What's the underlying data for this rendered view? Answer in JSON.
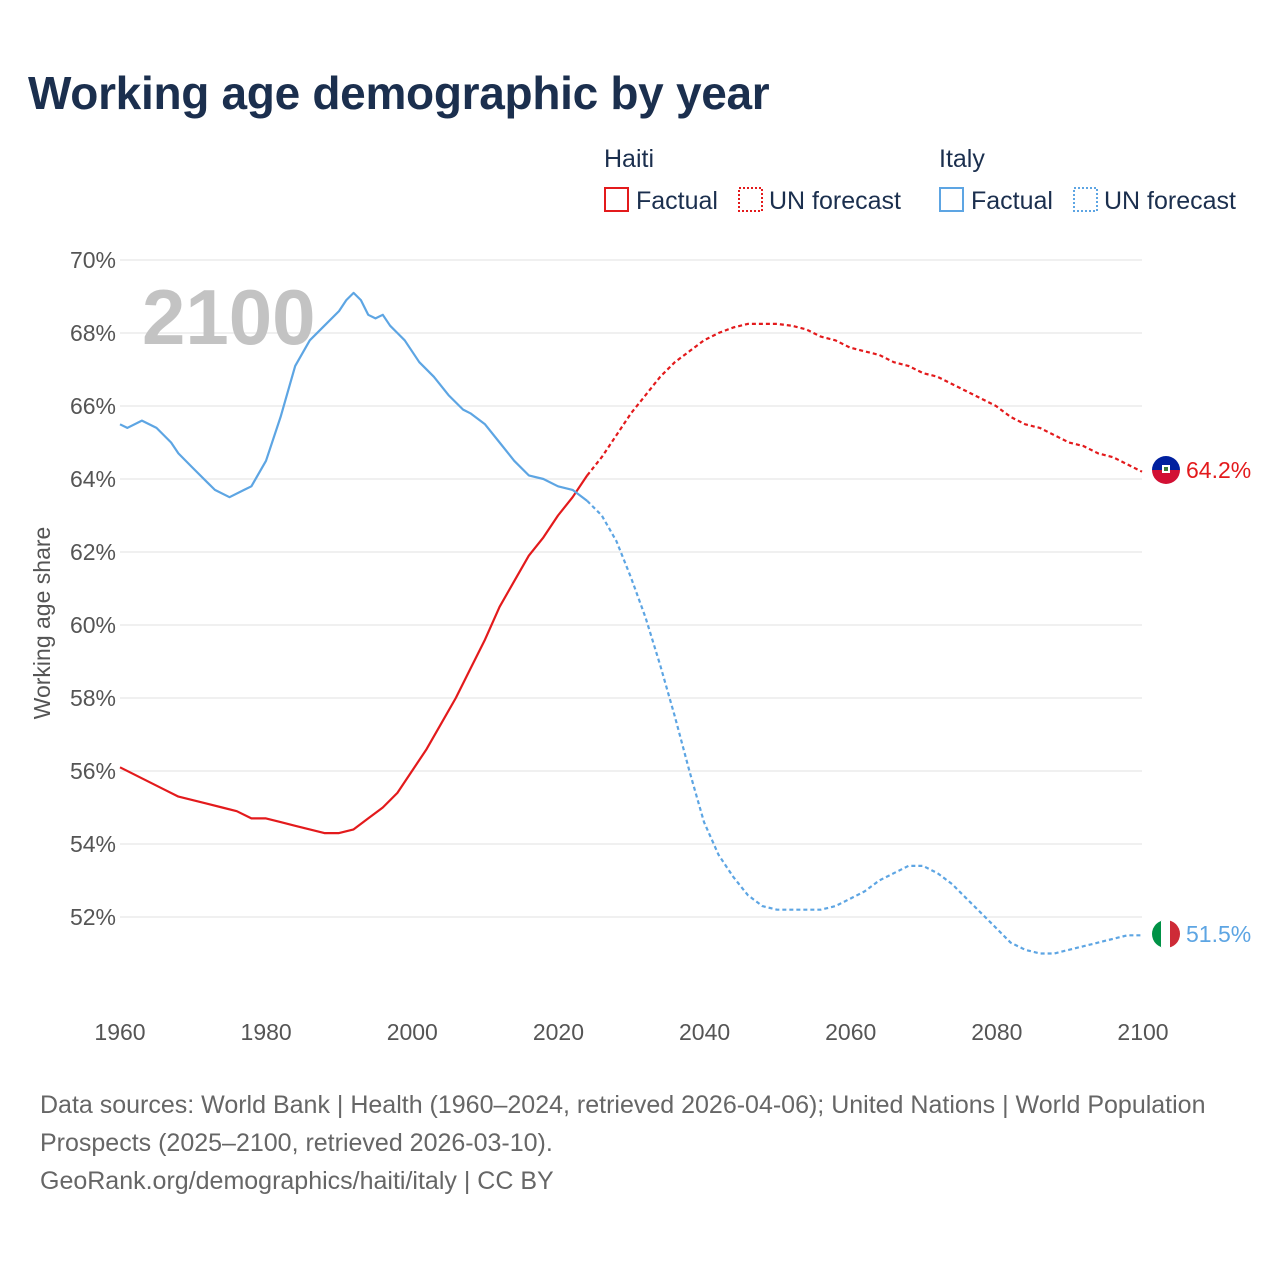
{
  "title": "Working age demographic by year",
  "watermark_year": "2100",
  "legend": {
    "groups": [
      {
        "name": "Haiti",
        "color": "#e31a1c",
        "factual_label": "Factual",
        "forecast_label": "UN forecast"
      },
      {
        "name": "Italy",
        "color": "#5da5e3",
        "factual_label": "Factual",
        "forecast_label": "UN forecast"
      }
    ]
  },
  "footer": {
    "sources": "Data sources: World Bank | Health (1960–2024, retrieved 2026-04-06); United Nations | World Population Prospects (2025–2100, retrieved 2026-03-10).",
    "credit": "GeoRank.org/demographics/haiti/italy | CC BY"
  },
  "chart_data": {
    "type": "line",
    "title": "Working age demographic by year",
    "xlabel": "",
    "ylabel": "Working age share",
    "xlim": [
      1960,
      2100
    ],
    "ylim": [
      50,
      70
    ],
    "x_ticks": [
      1960,
      1980,
      2000,
      2020,
      2040,
      2060,
      2080,
      2100
    ],
    "x_tick_labels": [
      "1960",
      "1980",
      "2000",
      "2020",
      "2040",
      "2060",
      "2080",
      "2100"
    ],
    "y_ticks": [
      52,
      54,
      56,
      58,
      60,
      62,
      64,
      66,
      68,
      70
    ],
    "y_tick_labels": [
      "52%",
      "54%",
      "56%",
      "58%",
      "60%",
      "62%",
      "64%",
      "66%",
      "68%",
      "70%"
    ],
    "grid": true,
    "forecast_start_year": 2024,
    "series": [
      {
        "name": "Haiti",
        "color": "#e31a1c",
        "end_label": "64.2%",
        "flag": "haiti-flag",
        "points": [
          [
            1960,
            56.1
          ],
          [
            1963,
            55.8
          ],
          [
            1966,
            55.5
          ],
          [
            1968,
            55.3
          ],
          [
            1970,
            55.2
          ],
          [
            1972,
            55.1
          ],
          [
            1974,
            55.0
          ],
          [
            1976,
            54.9
          ],
          [
            1978,
            54.7
          ],
          [
            1980,
            54.7
          ],
          [
            1982,
            54.6
          ],
          [
            1984,
            54.5
          ],
          [
            1986,
            54.4
          ],
          [
            1988,
            54.3
          ],
          [
            1990,
            54.3
          ],
          [
            1992,
            54.4
          ],
          [
            1994,
            54.7
          ],
          [
            1996,
            55.0
          ],
          [
            1998,
            55.4
          ],
          [
            2000,
            56.0
          ],
          [
            2002,
            56.6
          ],
          [
            2004,
            57.3
          ],
          [
            2006,
            58.0
          ],
          [
            2008,
            58.8
          ],
          [
            2010,
            59.6
          ],
          [
            2012,
            60.5
          ],
          [
            2014,
            61.2
          ],
          [
            2016,
            61.9
          ],
          [
            2018,
            62.4
          ],
          [
            2020,
            63.0
          ],
          [
            2022,
            63.5
          ],
          [
            2024,
            64.1
          ],
          [
            2026,
            64.6
          ],
          [
            2028,
            65.2
          ],
          [
            2030,
            65.8
          ],
          [
            2032,
            66.3
          ],
          [
            2034,
            66.8
          ],
          [
            2036,
            67.2
          ],
          [
            2038,
            67.5
          ],
          [
            2040,
            67.8
          ],
          [
            2042,
            68.0
          ],
          [
            2044,
            68.15
          ],
          [
            2046,
            68.25
          ],
          [
            2048,
            68.25
          ],
          [
            2050,
            68.25
          ],
          [
            2052,
            68.2
          ],
          [
            2054,
            68.1
          ],
          [
            2056,
            67.9
          ],
          [
            2058,
            67.8
          ],
          [
            2060,
            67.6
          ],
          [
            2062,
            67.5
          ],
          [
            2064,
            67.4
          ],
          [
            2066,
            67.2
          ],
          [
            2068,
            67.1
          ],
          [
            2070,
            66.9
          ],
          [
            2072,
            66.8
          ],
          [
            2074,
            66.6
          ],
          [
            2076,
            66.4
          ],
          [
            2078,
            66.2
          ],
          [
            2080,
            66.0
          ],
          [
            2082,
            65.7
          ],
          [
            2084,
            65.5
          ],
          [
            2086,
            65.4
          ],
          [
            2088,
            65.2
          ],
          [
            2090,
            65.0
          ],
          [
            2092,
            64.9
          ],
          [
            2094,
            64.7
          ],
          [
            2096,
            64.6
          ],
          [
            2098,
            64.4
          ],
          [
            2100,
            64.2
          ]
        ]
      },
      {
        "name": "Italy",
        "color": "#5da5e3",
        "end_label": "51.5%",
        "flag": "italy-flag",
        "points": [
          [
            1960,
            65.5
          ],
          [
            1961,
            65.4
          ],
          [
            1963,
            65.6
          ],
          [
            1965,
            65.4
          ],
          [
            1967,
            65.0
          ],
          [
            1968,
            64.7
          ],
          [
            1970,
            64.3
          ],
          [
            1972,
            63.9
          ],
          [
            1973,
            63.7
          ],
          [
            1975,
            63.5
          ],
          [
            1977,
            63.7
          ],
          [
            1978,
            63.8
          ],
          [
            1980,
            64.5
          ],
          [
            1982,
            65.7
          ],
          [
            1984,
            67.1
          ],
          [
            1986,
            67.8
          ],
          [
            1988,
            68.2
          ],
          [
            1990,
            68.6
          ],
          [
            1991,
            68.9
          ],
          [
            1992,
            69.1
          ],
          [
            1993,
            68.9
          ],
          [
            1994,
            68.5
          ],
          [
            1995,
            68.4
          ],
          [
            1996,
            68.5
          ],
          [
            1997,
            68.2
          ],
          [
            1998,
            68.0
          ],
          [
            1999,
            67.8
          ],
          [
            2001,
            67.2
          ],
          [
            2003,
            66.8
          ],
          [
            2005,
            66.3
          ],
          [
            2007,
            65.9
          ],
          [
            2008,
            65.8
          ],
          [
            2010,
            65.5
          ],
          [
            2012,
            65.0
          ],
          [
            2014,
            64.5
          ],
          [
            2016,
            64.1
          ],
          [
            2018,
            64.0
          ],
          [
            2020,
            63.8
          ],
          [
            2022,
            63.7
          ],
          [
            2024,
            63.4
          ],
          [
            2026,
            63.0
          ],
          [
            2028,
            62.3
          ],
          [
            2030,
            61.3
          ],
          [
            2032,
            60.2
          ],
          [
            2034,
            58.9
          ],
          [
            2036,
            57.5
          ],
          [
            2038,
            56.0
          ],
          [
            2040,
            54.6
          ],
          [
            2042,
            53.7
          ],
          [
            2044,
            53.1
          ],
          [
            2046,
            52.6
          ],
          [
            2048,
            52.3
          ],
          [
            2050,
            52.2
          ],
          [
            2052,
            52.2
          ],
          [
            2054,
            52.2
          ],
          [
            2056,
            52.2
          ],
          [
            2058,
            52.3
          ],
          [
            2060,
            52.5
          ],
          [
            2062,
            52.7
          ],
          [
            2064,
            53.0
          ],
          [
            2066,
            53.2
          ],
          [
            2068,
            53.4
          ],
          [
            2070,
            53.4
          ],
          [
            2072,
            53.2
          ],
          [
            2074,
            52.9
          ],
          [
            2076,
            52.5
          ],
          [
            2078,
            52.1
          ],
          [
            2080,
            51.7
          ],
          [
            2082,
            51.3
          ],
          [
            2084,
            51.1
          ],
          [
            2086,
            51.0
          ],
          [
            2088,
            51.0
          ],
          [
            2090,
            51.1
          ],
          [
            2092,
            51.2
          ],
          [
            2094,
            51.3
          ],
          [
            2096,
            51.4
          ],
          [
            2098,
            51.5
          ],
          [
            2100,
            51.5
          ]
        ]
      }
    ]
  }
}
